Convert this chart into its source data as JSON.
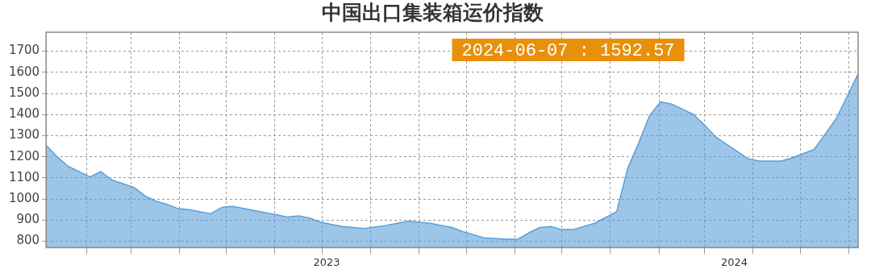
{
  "chart_data": {
    "type": "area",
    "title": "中国出口集装箱运价指数",
    "x": [
      "2023-01-06",
      "2023-01-13",
      "2023-01-20",
      "2023-02-03",
      "2023-02-10",
      "2023-02-17",
      "2023-03-03",
      "2023-03-10",
      "2023-03-17",
      "2023-03-24",
      "2023-03-31",
      "2023-04-07",
      "2023-04-21",
      "2023-04-28",
      "2023-05-05",
      "2023-06-02",
      "2023-06-09",
      "2023-06-16",
      "2023-06-23",
      "2023-06-30",
      "2023-07-14",
      "2023-07-28",
      "2023-08-11",
      "2023-08-18",
      "2023-08-25",
      "2023-09-08",
      "2023-09-15",
      "2023-09-22",
      "2023-09-29",
      "2023-10-13",
      "2023-10-27",
      "2023-11-03",
      "2023-11-10",
      "2023-11-17",
      "2023-11-24",
      "2023-12-01",
      "2023-12-08",
      "2023-12-22",
      "2024-01-05",
      "2024-01-12",
      "2024-01-19",
      "2024-01-26",
      "2024-02-02",
      "2024-02-09",
      "2024-02-23",
      "2024-03-01",
      "2024-03-08",
      "2024-03-29",
      "2024-04-05",
      "2024-04-19",
      "2024-04-26",
      "2024-05-10",
      "2024-05-24",
      "2024-06-07"
    ],
    "values": [
      1255,
      1200,
      1155,
      1105,
      1130,
      1090,
      1055,
      1015,
      990,
      975,
      955,
      950,
      930,
      960,
      965,
      925,
      915,
      920,
      910,
      890,
      870,
      860,
      875,
      885,
      895,
      885,
      875,
      865,
      845,
      815,
      810,
      810,
      840,
      865,
      870,
      855,
      855,
      885,
      940,
      1145,
      1265,
      1395,
      1460,
      1450,
      1400,
      1350,
      1295,
      1190,
      1180,
      1180,
      1195,
      1235,
      1380,
      1592.57
    ],
    "color": "#5a9fd8",
    "xlim": [
      "2023-01-06",
      "2024-06-07"
    ],
    "xticks": [
      {
        "value": "2023-02-01",
        "label": null
      },
      {
        "value": "2023-03-01",
        "label": null
      },
      {
        "value": "2023-04-01",
        "label": null
      },
      {
        "value": "2023-05-01",
        "label": null
      },
      {
        "value": "2023-06-01",
        "label": null
      },
      {
        "value": "2023-07-01",
        "label": null
      },
      {
        "value": "2023-07-04",
        "label": "2023"
      },
      {
        "value": "2023-08-01",
        "label": null
      },
      {
        "value": "2023-09-01",
        "label": null
      },
      {
        "value": "2023-10-01",
        "label": null
      },
      {
        "value": "2023-11-01",
        "label": null
      },
      {
        "value": "2023-12-01",
        "label": null
      },
      {
        "value": "2024-01-01",
        "label": null
      },
      {
        "value": "2024-02-01",
        "label": null
      },
      {
        "value": "2024-03-01",
        "label": null
      },
      {
        "value": "2024-03-20",
        "label": "2024"
      },
      {
        "value": "2024-04-01",
        "label": null
      },
      {
        "value": "2024-05-01",
        "label": null
      },
      {
        "value": "2024-06-01",
        "label": null
      }
    ],
    "ylim": [
      770,
      1790
    ],
    "yticks": [
      800,
      900,
      1000,
      1100,
      1200,
      1300,
      1400,
      1500,
      1600,
      1700
    ],
    "grid": true,
    "annotations": [
      "2024-06-07 : 1592.57"
    ]
  }
}
